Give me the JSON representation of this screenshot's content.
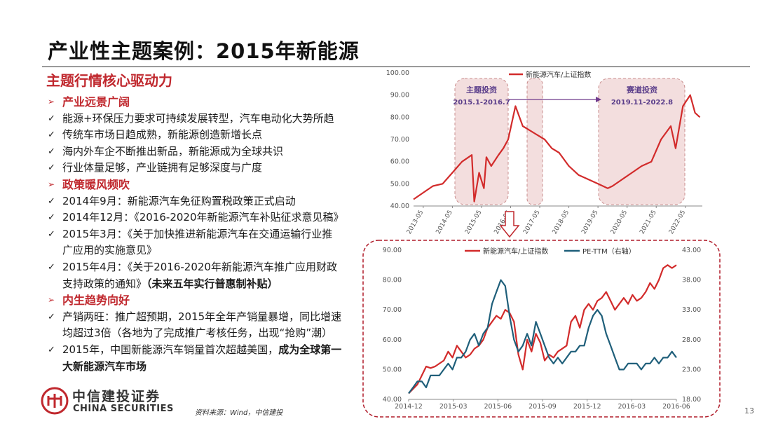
{
  "slide": {
    "title": "产业性主题案例：2015年新能源",
    "subtitle": "主题行情核心驱动力",
    "source": "资料来源：Wind，中信建投",
    "page_number": "13",
    "logo": {
      "cn": "中信建投证券",
      "en": "CHINA SECURITIES"
    },
    "accent_color": "#c0282e"
  },
  "sections": [
    {
      "heading": "产业远景广阔",
      "items": [
        [
          "能源+环保压力要求可持续发展转型，汽车电动化大势所趋"
        ],
        [
          "传统车市场日趋成熟，新能源创造新增长点"
        ],
        [
          "海内外车企不断推出新品，新能源成为全球共识"
        ],
        [
          "行业体量足够，产业链拥有足够深度与广度"
        ]
      ]
    },
    {
      "heading": "政策暖风频吹",
      "items": [
        [
          "2014年9月：新能源汽车免征购置税政策正式启动"
        ],
        [
          "2014年12月：《2016-2020年新能源汽车补贴征求意见稿》"
        ],
        [
          "2015年3月：《关于加快推进新能源汽车在交通运输行业推",
          "广应用的实施意见》"
        ],
        [
          "2015年4月：《关于2016-2020年新能源汽车推广应用财政",
          "支持政策的通知》"
        ]
      ],
      "bold_suffix": "（未来五年实行普惠制补贴）"
    },
    {
      "heading": "内生趋势向好",
      "items": [
        [
          "产销两旺：推广超预期，2015年全年产销量暴增，同比增速",
          "均超过3倍（各地为了完成推广考核任务，出现“抢购”潮）"
        ],
        [
          "2015年，中国新能源汽车销量首次超越美国，"
        ]
      ],
      "bold_tail_1": "成为全球第一",
      "bold_tail_2": "大新能源汽车市场"
    }
  ],
  "chart_data": [
    {
      "type": "line",
      "series": [
        {
          "name": "新能源汽车/上证指数",
          "color": "#d22b2b",
          "x": [
            "2013-01",
            "2013-05",
            "2013-09",
            "2014-01",
            "2014-05",
            "2014-09",
            "2015-01",
            "2015-02",
            "2015-04",
            "2015-06",
            "2015-07",
            "2015-09",
            "2015-12",
            "2016-02",
            "2016-04",
            "2016-07",
            "2016-10",
            "2017-01",
            "2017-04",
            "2017-07",
            "2017-10",
            "2018-01",
            "2018-05",
            "2018-09",
            "2019-01",
            "2019-05",
            "2019-09",
            "2019-11",
            "2020-03",
            "2020-07",
            "2020-11",
            "2021-03",
            "2021-07",
            "2021-11",
            "2022-01",
            "2022-04",
            "2022-07",
            "2022-09",
            "2022-11"
          ],
          "values": [
            43,
            46,
            49,
            50,
            55,
            60,
            63,
            42,
            55,
            48,
            62,
            58,
            63,
            66,
            70,
            85,
            76,
            74,
            72,
            70,
            66,
            64,
            58,
            54,
            52,
            50,
            48,
            49,
            52,
            55,
            58,
            60,
            70,
            76,
            66,
            85,
            90,
            82,
            80
          ]
        }
      ],
      "annotations": [
        {
          "label": "主题投资",
          "period": "2015.1-2016.7"
        },
        {
          "label": "赛道投资",
          "period": "2019.11-2022.8"
        }
      ],
      "x_tick_labels": [
        "2013-05",
        "2014-05",
        "2015-05",
        "2016-05",
        "2017-05",
        "2018-05",
        "2019-05",
        "2020-05",
        "2021-05",
        "2022-05"
      ],
      "y_tick_labels": [
        "40.00",
        "50.00",
        "60.00",
        "70.00",
        "80.00",
        "90.00",
        "100.00"
      ],
      "ylim": [
        40,
        100
      ],
      "legend_position": "top-center",
      "grid": false
    },
    {
      "type": "line",
      "series": [
        {
          "name": "新能源汽车/上证指数",
          "color": "#d22b2b",
          "axis": "left",
          "values": [
            42,
            43.5,
            45,
            48,
            51,
            50.5,
            51,
            52,
            53,
            56,
            54,
            58,
            56,
            54,
            55,
            57,
            58,
            60,
            64,
            66,
            68,
            67,
            70,
            69,
            66,
            55,
            50,
            60,
            56,
            62,
            59,
            53,
            55,
            54,
            56,
            57,
            58,
            66,
            68,
            64,
            70,
            72,
            70,
            73,
            74,
            76,
            73,
            70,
            72,
            74,
            72,
            75,
            73,
            74,
            76,
            79,
            77,
            80,
            84,
            85,
            84,
            85
          ]
        },
        {
          "name": "PE-TTM（右轴）",
          "color": "#1f5f7a",
          "axis": "right",
          "values": [
            19,
            20,
            21,
            21,
            20,
            22,
            22,
            22,
            23,
            24,
            23,
            25,
            25,
            26,
            28,
            29,
            27,
            29,
            30,
            34,
            36,
            38,
            37,
            32,
            28,
            26,
            27,
            29,
            27,
            31,
            29,
            27,
            25,
            24,
            25,
            24,
            25,
            26,
            26,
            27,
            27,
            30,
            32,
            33,
            32,
            29,
            27,
            25,
            23,
            23,
            24,
            24,
            24,
            23,
            24,
            24,
            25,
            24,
            25,
            25,
            26,
            25
          ]
        }
      ],
      "x_tick_labels": [
        "2014-12",
        "2015-03",
        "2015-06",
        "2015-09",
        "2015-12",
        "2016-03",
        "2016-06"
      ],
      "y_left_tick_labels": [
        "40.00",
        "50.00",
        "60.00",
        "70.00",
        "80.00",
        "90.00"
      ],
      "y_right_tick_labels": [
        "18.00",
        "23.00",
        "28.00",
        "33.00",
        "38.00",
        "43.00"
      ],
      "ylim_left": [
        40,
        90
      ],
      "ylim_right": [
        18,
        43
      ],
      "legend_position": "top",
      "grid": false
    }
  ]
}
